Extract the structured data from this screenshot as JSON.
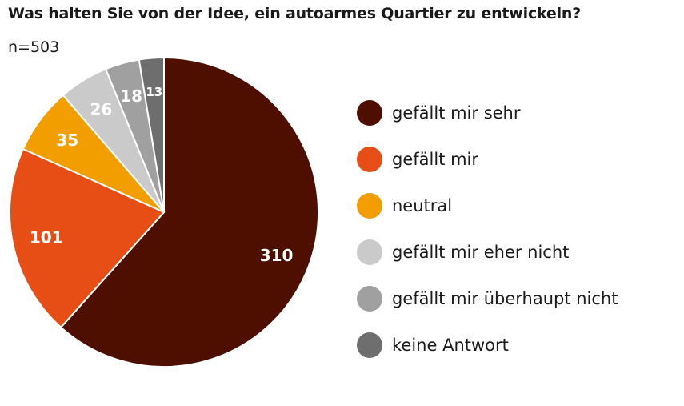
{
  "title": "Was halten Sie von der Idee, ein autoarmes Quartier zu entwickeln?",
  "subtitle": "n=503",
  "chart_data": {
    "type": "pie",
    "title": "Was halten Sie von der Idee, ein autoarmes Quartier zu entwickeln?",
    "legend_position": "right",
    "slices": [
      {
        "label": "gefällt mir sehr",
        "value": 310,
        "color": "#4f0f00"
      },
      {
        "label": "gefällt mir",
        "value": 101,
        "color": "#e64e16"
      },
      {
        "label": "neutral",
        "value": 35,
        "color": "#f29d00"
      },
      {
        "label": "gefällt mir eher nicht",
        "value": 26,
        "color": "#cacaca"
      },
      {
        "label": "gefällt mir überhaupt nicht",
        "value": 18,
        "color": "#a0a0a0"
      },
      {
        "label": "keine Antwort",
        "value": 13,
        "color": "#6e6e6e"
      }
    ]
  }
}
